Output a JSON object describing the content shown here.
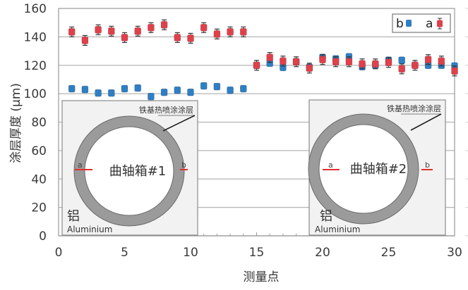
{
  "chart_data": {
    "type": "scatter",
    "title": "",
    "xlabel": "测量点",
    "ylabel": "涂层厚度 (μm)",
    "xlim": [
      0,
      30
    ],
    "ylim": [
      0,
      160
    ],
    "xticks": [
      0,
      5,
      10,
      15,
      20,
      25,
      30
    ],
    "yticks": [
      0,
      20,
      40,
      60,
      80,
      100,
      120,
      140,
      160
    ],
    "grid": "horizontal",
    "legend_position": "top-right",
    "x": [
      1,
      2,
      3,
      4,
      5,
      6,
      7,
      8,
      9,
      10,
      11,
      12,
      13,
      14,
      15,
      16,
      17,
      18,
      19,
      20,
      21,
      22,
      23,
      24,
      25,
      26,
      27,
      28,
      29,
      30
    ],
    "series": [
      {
        "name": "b",
        "color": "#2f7fc4",
        "values": [
          103.5,
          103,
          100.5,
          100.5,
          103.5,
          104,
          98,
          101,
          102.5,
          101,
          105.5,
          105,
          102.5,
          103.5,
          120,
          121.5,
          118.5,
          122.5,
          118.5,
          125.5,
          124.5,
          126,
          119,
          120,
          123.5,
          123.5,
          120,
          120,
          120,
          119.5
        ]
      },
      {
        "name": "a",
        "color": "#e0404a",
        "error_bars": true,
        "values": [
          143.5,
          137.5,
          145,
          144,
          139.5,
          144,
          146.5,
          148.5,
          139.5,
          139,
          146.5,
          142,
          143.5,
          143.5,
          120,
          125.5,
          123,
          122.5,
          118,
          124,
          122.5,
          122.5,
          121,
          121,
          122,
          117.5,
          120,
          124,
          123,
          116
        ]
      }
    ],
    "annotations": [
      {
        "inset": 1,
        "title": "曲轴箱#1",
        "coating": "铁基热喷涂涂层",
        "substrate_cn": "铝",
        "substrate_en": "Aluminium",
        "points": [
          "a",
          "b"
        ]
      },
      {
        "inset": 2,
        "title": "曲轴箱#2",
        "coating": "铁基热喷涂涂层",
        "substrate_cn": "铝",
        "substrate_en": "Aluminium",
        "points": [
          "a",
          "b"
        ]
      }
    ]
  },
  "legend": {
    "b_label": "b",
    "a_label": "a"
  },
  "insets": [
    {
      "coating_label": "铁基热喷涂涂层",
      "title": "曲轴箱#1",
      "point_a": "a",
      "point_b": "b",
      "substrate_cn": "铝",
      "substrate_en": "Aluminium"
    },
    {
      "coating_label": "铁基热喷涂涂层",
      "title": "曲轴箱#2",
      "point_a": "a",
      "point_b": "b",
      "substrate_cn": "铝",
      "substrate_en": "Aluminium"
    }
  ],
  "axes": {
    "xlabel": "测量点",
    "ylabel": "涂层厚度 (μm)",
    "yticks": [
      "0",
      "20",
      "40",
      "60",
      "80",
      "100",
      "120",
      "140",
      "160"
    ],
    "xticks": [
      "0",
      "5",
      "10",
      "15",
      "20",
      "25",
      "30"
    ]
  }
}
